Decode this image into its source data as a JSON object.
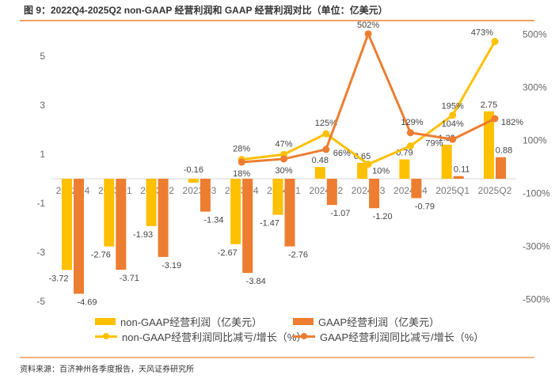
{
  "title": "图 9：2022Q4-2025Q2 non-GAAP 经营利润和 GAAP 经营利润对比（单位：亿美元）",
  "source": "资料来源：百济神州各季度报告，天风证券研究所",
  "chart_data": {
    "type": "bar+line",
    "categories": [
      "2022Q4",
      "2023Q1",
      "2023Q2",
      "2023Q3",
      "2023Q4",
      "2024Q1",
      "2024Q2",
      "2024Q3",
      "2024Q4",
      "2025Q1",
      "2025Q2"
    ],
    "y_left": {
      "ticks": [
        "5",
        "3",
        "1",
        "-1",
        "-3",
        "-5"
      ],
      "range": [
        -5.5,
        6
      ]
    },
    "y_right": {
      "ticks": [
        "500%",
        "300%",
        "100%",
        "-100%",
        "-300%",
        "-500%"
      ],
      "range": [
        -500,
        500
      ]
    },
    "grid": false,
    "legend_position": "bottom",
    "series": [
      {
        "name": "non-GAAP经营利润（亿美元）",
        "type": "bar",
        "axis": "left",
        "color": "#FFC000",
        "values": [
          -3.72,
          -2.76,
          -1.93,
          -0.16,
          -2.67,
          -1.47,
          0.48,
          0.65,
          0.79,
          1.39,
          2.75
        ],
        "labels": [
          "-3.72",
          "-2.76",
          "-1.93",
          "-0.16",
          "-2.67",
          "-1.47",
          "0.48",
          "0.65",
          "0.79",
          "1.39",
          "2.75"
        ]
      },
      {
        "name": "GAAP经营利润（亿美元）",
        "type": "bar",
        "axis": "left",
        "color": "#ED7D31",
        "values": [
          -4.69,
          -3.71,
          -3.19,
          -1.34,
          -3.84,
          -2.76,
          -1.07,
          -1.2,
          -0.79,
          0.11,
          0.88
        ],
        "labels": [
          "-4.69",
          "-3.71",
          "-3.19",
          "-1.34",
          "-3.84",
          "-2.76",
          "-1.07",
          "-1.20",
          "-0.79",
          "0.11",
          "0.88"
        ]
      },
      {
        "name": "non-GAAP经营利润同比减亏/增长（%）",
        "type": "line",
        "axis": "right",
        "color": "#FFC000",
        "values": [
          null,
          null,
          null,
          null,
          28,
          47,
          125,
          10,
          79,
          195,
          473
        ],
        "labels": [
          null,
          null,
          null,
          null,
          "28%",
          "47%",
          "125%",
          "10%",
          "79%",
          "195%",
          "473%"
        ]
      },
      {
        "name": "GAAP经营利润同比减亏/增长（%）",
        "type": "line",
        "axis": "right",
        "color": "#ED7D31",
        "values": [
          null,
          null,
          null,
          null,
          18,
          30,
          66,
          502,
          129,
          104,
          182
        ],
        "labels": [
          null,
          null,
          null,
          null,
          "18%",
          "30%",
          "66%",
          "502%",
          "129%",
          "104%",
          "182%"
        ]
      }
    ]
  }
}
